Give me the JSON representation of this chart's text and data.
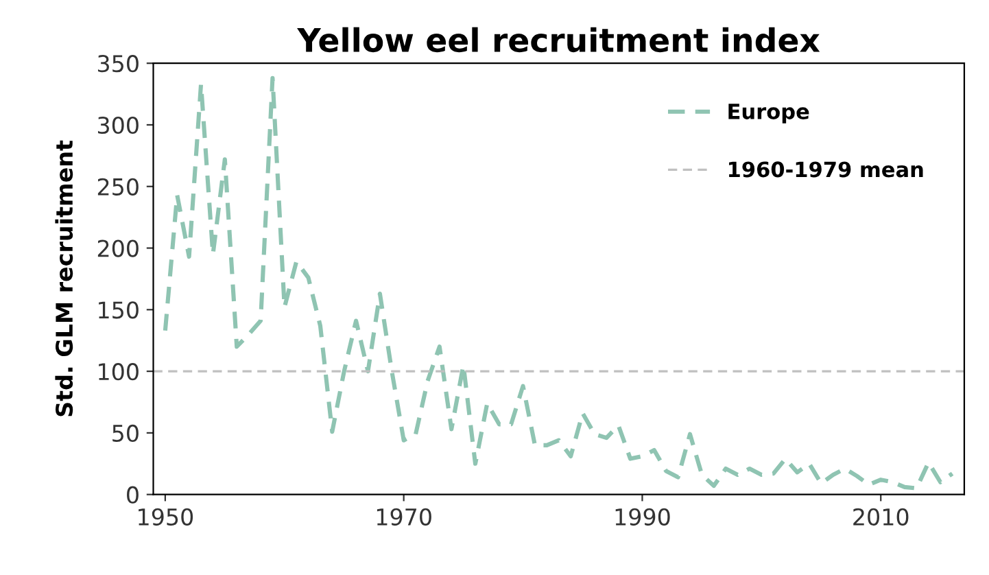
{
  "chart_data": {
    "type": "line",
    "title": "Yellow eel recruitment index",
    "ylabel": "Std. GLM recruitment",
    "x": [
      1950,
      1951,
      1952,
      1953,
      1954,
      1955,
      1956,
      1957,
      1958,
      1959,
      1960,
      1961,
      1962,
      1963,
      1964,
      1965,
      1966,
      1967,
      1968,
      1969,
      1970,
      1971,
      1972,
      1973,
      1974,
      1975,
      1976,
      1977,
      1978,
      1979,
      1980,
      1981,
      1982,
      1983,
      1984,
      1985,
      1986,
      1987,
      1988,
      1989,
      1990,
      1991,
      1992,
      1993,
      1994,
      1995,
      1996,
      1997,
      1998,
      1999,
      2000,
      2001,
      2002,
      2003,
      2004,
      2005,
      2006,
      2007,
      2008,
      2009,
      2010,
      2011,
      2012,
      2013,
      2014,
      2015,
      2016
    ],
    "series": [
      {
        "name": "Europe",
        "color": "#8fc4b2",
        "values": [
          133,
          243,
          193,
          333,
          195,
          272,
          120,
          130,
          141,
          338,
          152,
          189,
          176,
          137,
          51,
          100,
          141,
          100,
          163,
          100,
          44,
          49,
          92,
          120,
          53,
          105,
          25,
          74,
          57,
          57,
          88,
          40,
          40,
          44,
          31,
          66,
          49,
          46,
          56,
          29,
          31,
          36,
          19,
          14,
          49,
          16,
          7,
          21,
          16,
          21,
          16,
          17,
          29,
          18,
          25,
          9,
          16,
          21,
          15,
          8,
          12,
          10,
          6,
          5,
          26,
          10,
          17
        ]
      }
    ],
    "ref_lines": [
      {
        "axis": "y",
        "value": 100,
        "label": "1960-1979 mean",
        "color": "#c0c0c0",
        "line_style": "dashed"
      }
    ],
    "line_style": "dashed",
    "marker": "none",
    "grid": false,
    "legend": "top right",
    "xlim": [
      1949,
      2017
    ],
    "xticks": [
      1950,
      1970,
      1990,
      2010
    ],
    "ylim": [
      0,
      350
    ],
    "yticks": [
      0,
      50,
      100,
      150,
      200,
      250,
      300,
      350
    ]
  }
}
